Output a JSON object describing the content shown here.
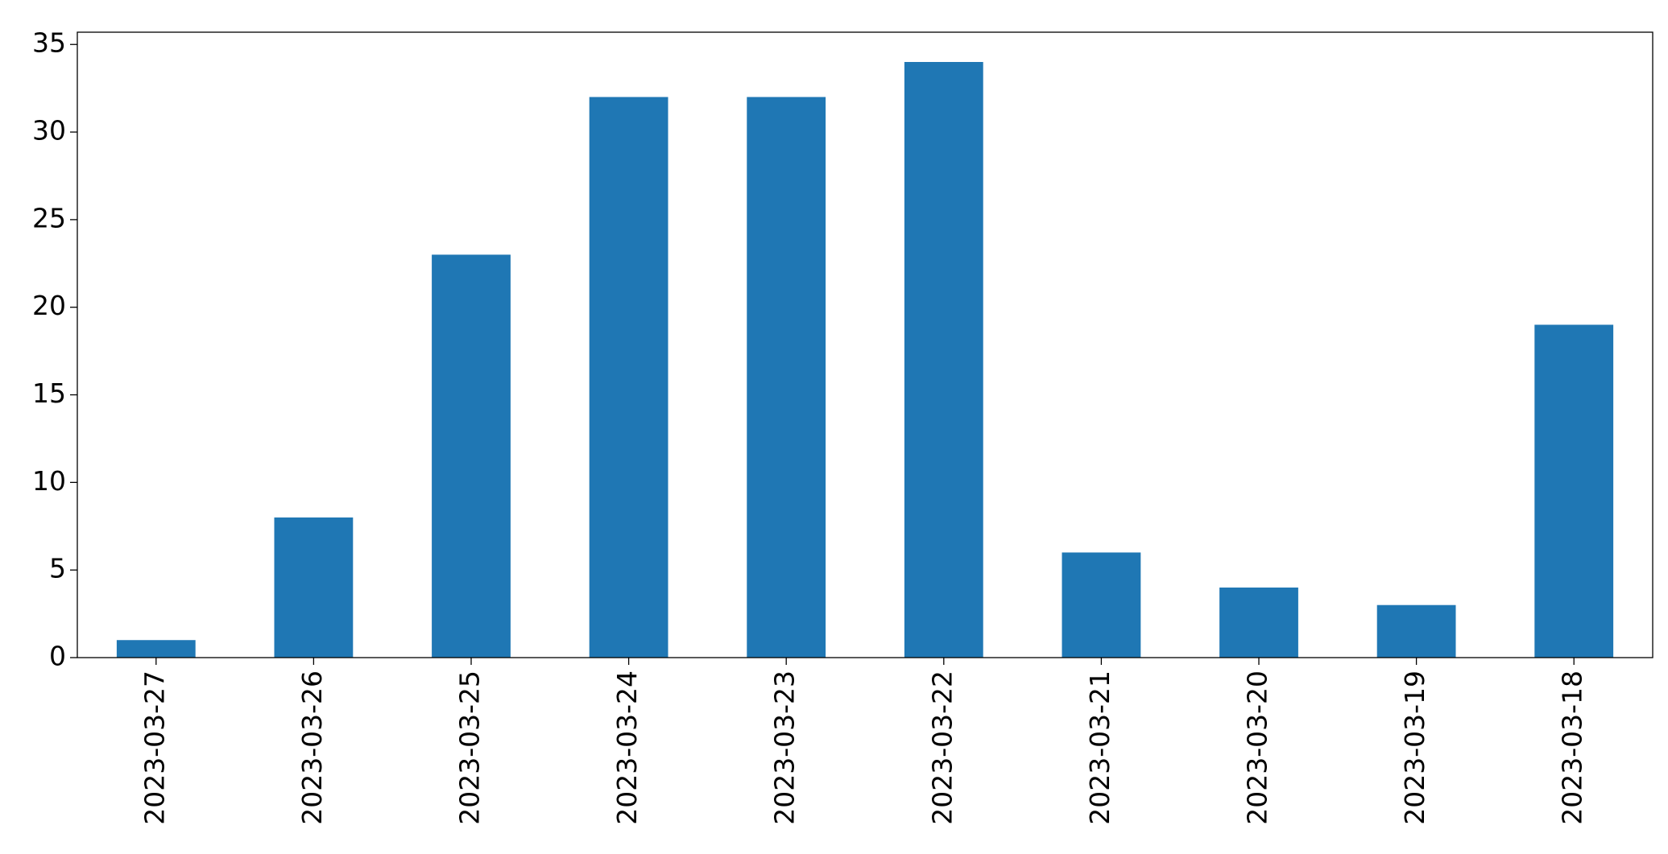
{
  "chart_data": {
    "type": "bar",
    "categories": [
      "2023-03-27",
      "2023-03-26",
      "2023-03-25",
      "2023-03-24",
      "2023-03-23",
      "2023-03-22",
      "2023-03-21",
      "2023-03-20",
      "2023-03-19",
      "2023-03-18"
    ],
    "values": [
      1,
      8,
      23,
      32,
      32,
      34,
      6,
      4,
      3,
      19
    ],
    "color": "#1f77b4",
    "ylim": [
      0,
      35.7
    ],
    "yticks": [
      0,
      5,
      10,
      15,
      20,
      25,
      30,
      35
    ],
    "grid": false
  }
}
